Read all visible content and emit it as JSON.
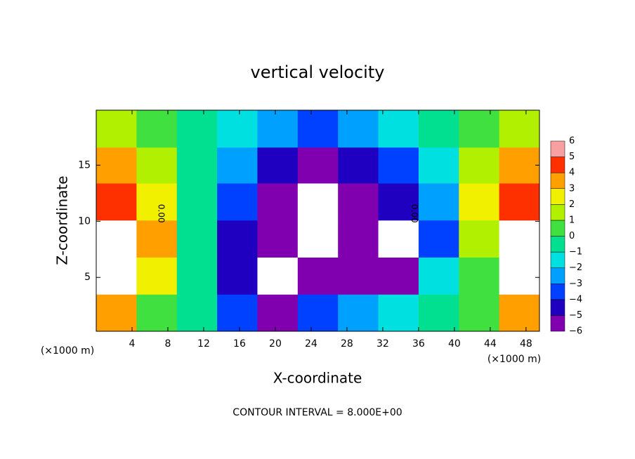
{
  "chart_data": {
    "type": "heatmap",
    "title": "vertical velocity",
    "x_label": "X-coordinate",
    "y_label": "Z-coordinate",
    "x_unit": "(×1000 m)",
    "x_unit_right": "(×1000 m)",
    "footer": "CONTOUR INTERVAL = 8.000E+00",
    "contour_labels": [
      "0.00",
      "0.00"
    ],
    "xlim": [
      0,
      49.5
    ],
    "ylim": [
      0.2,
      19.9
    ],
    "xticks": [
      4,
      8,
      12,
      16,
      20,
      24,
      28,
      32,
      36,
      40,
      44,
      48
    ],
    "yticks": [
      5,
      10,
      15
    ],
    "xbins": [
      0,
      4.5,
      9,
      13.5,
      18,
      22.5,
      27,
      31.5,
      36,
      40.5,
      45,
      49.5
    ],
    "ybins": [
      0.2,
      3.5,
      6.8,
      10.1,
      13.4,
      16.6,
      19.9
    ],
    "z": [
      [
        4,
        1,
        0,
        -3,
        -5,
        -3,
        -2,
        -1,
        0,
        1,
        4
      ],
      [
        7,
        3,
        0,
        -4,
        -7,
        -5,
        -5,
        -5,
        -1,
        1,
        7
      ],
      [
        7,
        4,
        0,
        -4,
        -6,
        -7,
        -5,
        -7,
        -3,
        2,
        7
      ],
      [
        5,
        3,
        0,
        -3,
        -5,
        -7,
        -5,
        -4,
        -2,
        3,
        5
      ],
      [
        4,
        2,
        0,
        -2,
        -4,
        -5,
        -4,
        -3,
        -1,
        2,
        4
      ],
      [
        2,
        1,
        0,
        -1,
        -2,
        -3,
        -2,
        -1,
        0,
        1,
        2
      ]
    ],
    "levels": [
      -6,
      -5,
      -4,
      -3,
      -2,
      -1,
      0,
      1,
      2,
      3,
      4,
      5,
      6
    ],
    "level_labels": [
      "−6",
      "−5",
      "−4",
      "−3",
      "−2",
      "−1",
      "0",
      "1",
      "2",
      "3",
      "4",
      "5",
      "6"
    ],
    "colors": [
      "#8000b0",
      "#2000c0",
      "#0040ff",
      "#00a0ff",
      "#00e0e0",
      "#00e090",
      "#40e040",
      "#b0f000",
      "#f0f000",
      "#ffa000",
      "#ff3000",
      "#f8a0a0"
    ],
    "out_of_range_color": "#ffffff"
  }
}
